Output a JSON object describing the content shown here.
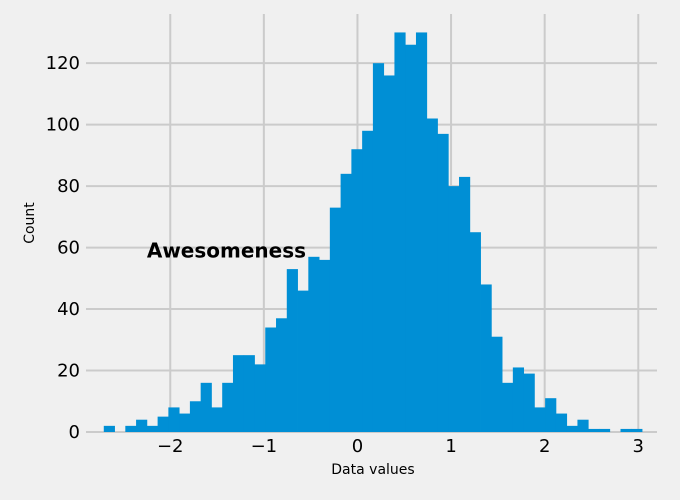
{
  "chart_data": {
    "type": "bar",
    "style": "fivethirtyeight",
    "colors": {
      "bar": "#008fd5",
      "background": "#f0f0f0",
      "grid": "#cbcbcb"
    },
    "xlabel": "Data values",
    "ylabel": "Count",
    "annotation": {
      "text": "Awesomeness",
      "x": -2.25,
      "y": 59
    },
    "xlim": [
      -2.9,
      3.2
    ],
    "ylim": [
      0,
      136
    ],
    "grid": true,
    "bin_width": 0.115,
    "x_ticks": [
      {
        "value": -2,
        "label": "−2"
      },
      {
        "value": -1,
        "label": "−1"
      },
      {
        "value": 0,
        "label": "0"
      },
      {
        "value": 1,
        "label": "1"
      },
      {
        "value": 2,
        "label": "2"
      },
      {
        "value": 3,
        "label": "3"
      }
    ],
    "y_ticks": [
      {
        "value": 0,
        "label": "0"
      },
      {
        "value": 20,
        "label": "20"
      },
      {
        "value": 40,
        "label": "40"
      },
      {
        "value": 60,
        "label": "60"
      },
      {
        "value": 80,
        "label": "80"
      },
      {
        "value": 100,
        "label": "100"
      },
      {
        "value": 120,
        "label": "120"
      }
    ],
    "bins": [
      {
        "x0": -2.71,
        "count": 2
      },
      {
        "x0": -2.595,
        "count": 0
      },
      {
        "x0": -2.48,
        "count": 2
      },
      {
        "x0": -2.365,
        "count": 4
      },
      {
        "x0": -2.25,
        "count": 2
      },
      {
        "x0": -2.135,
        "count": 5
      },
      {
        "x0": -2.02,
        "count": 8
      },
      {
        "x0": -1.905,
        "count": 6
      },
      {
        "x0": -1.79,
        "count": 10
      },
      {
        "x0": -1.675,
        "count": 16
      },
      {
        "x0": -1.56,
        "count": 8
      },
      {
        "x0": -1.445,
        "count": 16
      },
      {
        "x0": -1.33,
        "count": 25
      },
      {
        "x0": -1.215,
        "count": 25
      },
      {
        "x0": -1.1,
        "count": 22
      },
      {
        "x0": -0.985,
        "count": 34
      },
      {
        "x0": -0.87,
        "count": 37
      },
      {
        "x0": -0.755,
        "count": 53
      },
      {
        "x0": -0.64,
        "count": 46
      },
      {
        "x0": -0.525,
        "count": 57
      },
      {
        "x0": -0.41,
        "count": 56
      },
      {
        "x0": -0.295,
        "count": 73
      },
      {
        "x0": -0.18,
        "count": 84
      },
      {
        "x0": -0.065,
        "count": 92
      },
      {
        "x0": 0.05,
        "count": 98
      },
      {
        "x0": 0.165,
        "count": 120
      },
      {
        "x0": 0.28,
        "count": 116
      },
      {
        "x0": 0.395,
        "count": 130
      },
      {
        "x0": 0.51,
        "count": 126
      },
      {
        "x0": 0.625,
        "count": 130
      },
      {
        "x0": 0.74,
        "count": 102
      },
      {
        "x0": 0.855,
        "count": 97
      },
      {
        "x0": 0.97,
        "count": 80
      },
      {
        "x0": 1.085,
        "count": 83
      },
      {
        "x0": 1.2,
        "count": 65
      },
      {
        "x0": 1.315,
        "count": 48
      },
      {
        "x0": 1.43,
        "count": 31
      },
      {
        "x0": 1.545,
        "count": 16
      },
      {
        "x0": 1.66,
        "count": 21
      },
      {
        "x0": 1.775,
        "count": 19
      },
      {
        "x0": 1.89,
        "count": 8
      },
      {
        "x0": 2.005,
        "count": 11
      },
      {
        "x0": 2.12,
        "count": 6
      },
      {
        "x0": 2.235,
        "count": 2
      },
      {
        "x0": 2.35,
        "count": 4
      },
      {
        "x0": 2.465,
        "count": 1
      },
      {
        "x0": 2.58,
        "count": 1
      },
      {
        "x0": 2.695,
        "count": 0
      },
      {
        "x0": 2.81,
        "count": 1
      },
      {
        "x0": 2.925,
        "count": 1
      }
    ]
  }
}
